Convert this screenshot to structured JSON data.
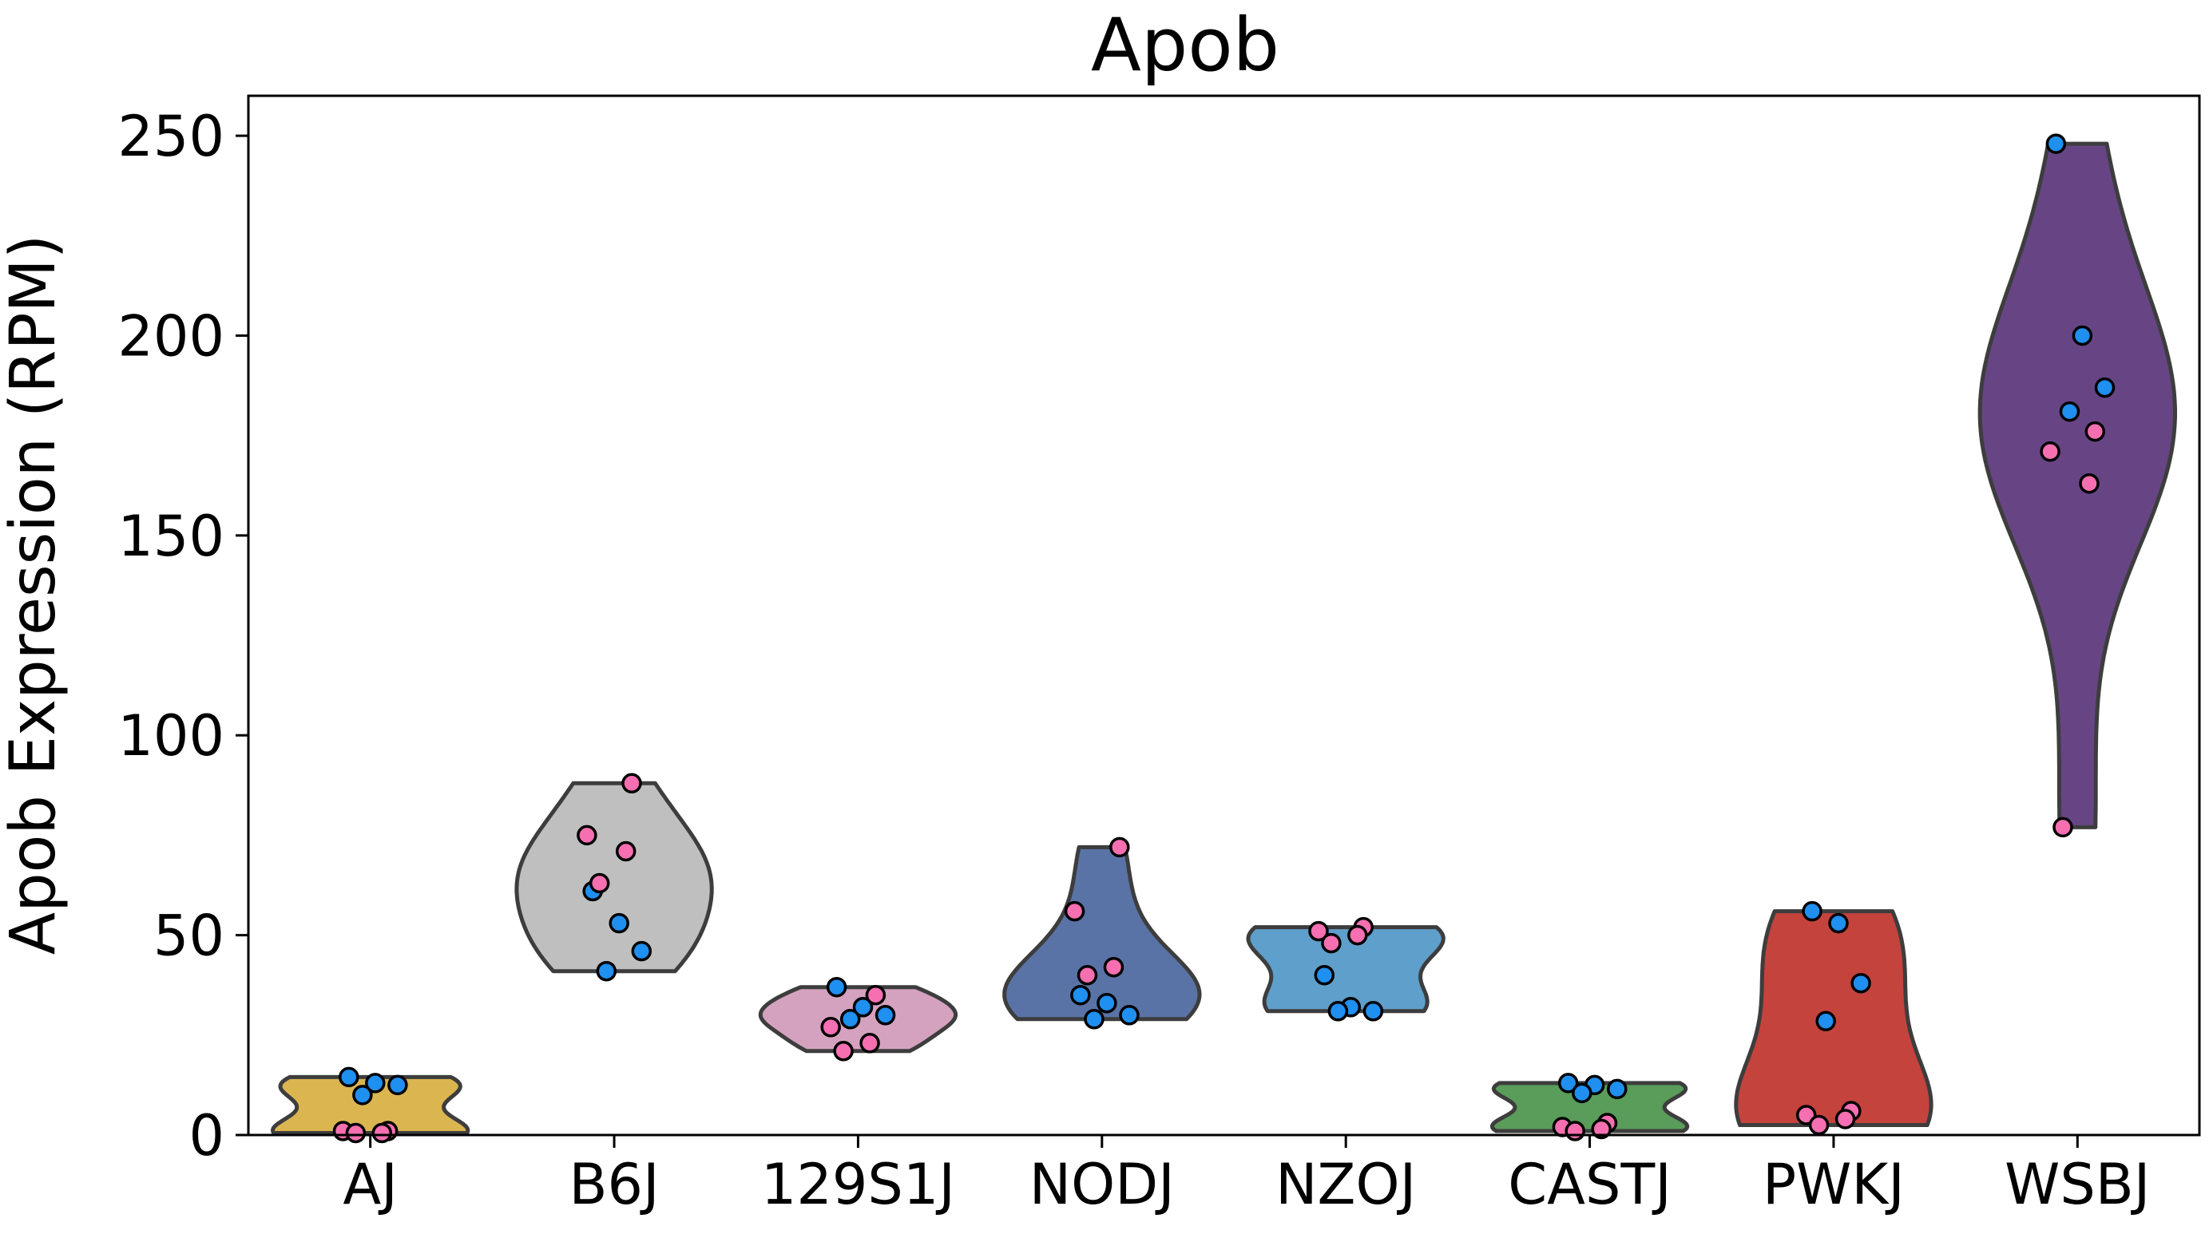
{
  "chart_data": {
    "type": "violin",
    "title": "Apob",
    "xlabel": "",
    "ylabel": "Apob Expression (RPM)",
    "ylim": [
      0,
      260
    ],
    "yticks": [
      0,
      50,
      100,
      150,
      200,
      250
    ],
    "grid": false,
    "categories": [
      "AJ",
      "B6J",
      "129S1J",
      "NODJ",
      "NZOJ",
      "CASTJ",
      "PWKJ",
      "WSBJ"
    ],
    "colors": {
      "AJ": "#dbb550",
      "B6J": "#bfbfbf",
      "129S1J": "#d4a2bf",
      "NODJ": "#5a73a6",
      "NZOJ": "#5f9fcb",
      "CASTJ": "#5a9c5a",
      "PWKJ": "#c5433d",
      "WSBJ": "#674585",
      "point_blue": "#1f8ff0",
      "point_pink": "#f56fb1"
    },
    "points": [
      {
        "group": "AJ",
        "blue": [
          14.5,
          13,
          12.5,
          10
        ],
        "pink": [
          1,
          1,
          0.5,
          0.5
        ]
      },
      {
        "group": "B6J",
        "blue": [
          61,
          53,
          46,
          41
        ],
        "pink": [
          88,
          75,
          71,
          63
        ]
      },
      {
        "group": "129S1J",
        "blue": [
          37,
          32,
          30,
          29
        ],
        "pink": [
          35,
          27,
          23,
          21
        ]
      },
      {
        "group": "NODJ",
        "blue": [
          35,
          33,
          30,
          29
        ],
        "pink": [
          72,
          56,
          42,
          40
        ]
      },
      {
        "group": "NZOJ",
        "blue": [
          40,
          32,
          31,
          31
        ],
        "pink": [
          52,
          51,
          50,
          48
        ]
      },
      {
        "group": "CASTJ",
        "blue": [
          13,
          12.5,
          11.5,
          10.5
        ],
        "pink": [
          3,
          2,
          1.5,
          1
        ]
      },
      {
        "group": "PWKJ",
        "blue": [
          56,
          53,
          38,
          28.5
        ],
        "pink": [
          6,
          5,
          4,
          2.5
        ]
      },
      {
        "group": "WSBJ",
        "blue": [
          248,
          200,
          187,
          181
        ],
        "pink": [
          176,
          171,
          163,
          77
        ]
      }
    ]
  }
}
